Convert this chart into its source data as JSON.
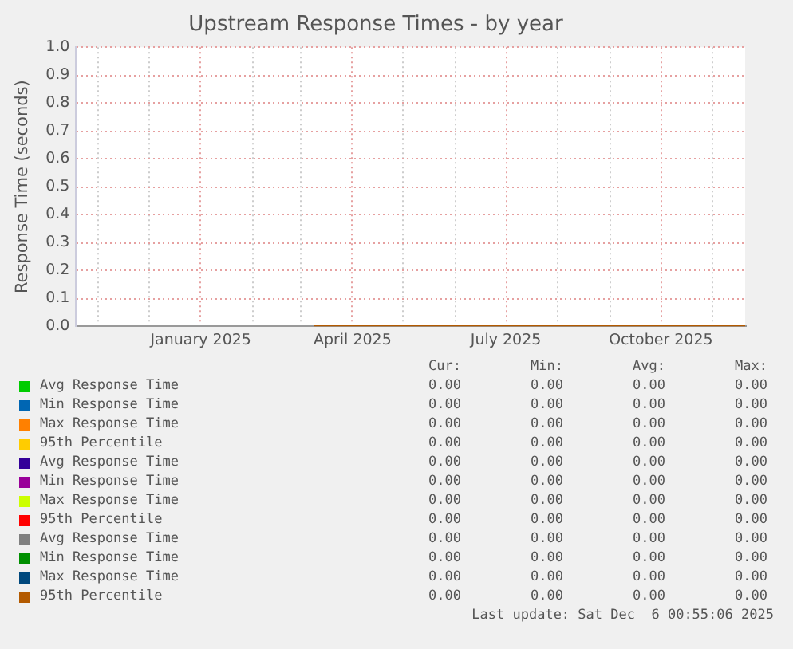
{
  "chart_data": {
    "type": "line",
    "title": "Upstream Response Times - by year",
    "ylabel": "Response Time (seconds)",
    "xlim": [
      "2024-10-19",
      "2025-11-20"
    ],
    "ylim": [
      0,
      1
    ],
    "yticks": [
      {
        "value": 0,
        "label": "0.0"
      },
      0.1,
      0.2,
      0.3,
      0.4,
      0.5,
      0.6,
      0.7,
      0.8,
      0.9,
      {
        "value": 1,
        "label": "1.0"
      }
    ],
    "xticks": [
      {
        "value": "2024-11-01",
        "label": null
      },
      {
        "value": "2024-12-01",
        "label": null
      },
      {
        "value": "2025-01-01",
        "label": "January 2025"
      },
      {
        "value": "2025-02-01",
        "label": null
      },
      {
        "value": "2025-03-01",
        "label": null
      },
      {
        "value": "2025-04-01",
        "label": "April 2025"
      },
      {
        "value": "2025-05-01",
        "label": null
      },
      {
        "value": "2025-06-01",
        "label": null
      },
      {
        "value": "2025-07-01",
        "label": "July 2025"
      },
      {
        "value": "2025-08-01",
        "label": null
      },
      {
        "value": "2025-09-01",
        "label": null
      },
      {
        "value": "2025-10-01",
        "label": "October 2025"
      },
      {
        "value": "2025-11-01",
        "label": null
      }
    ],
    "grid": true,
    "legend": "bottom",
    "marker": "none",
    "line_style": "solid",
    "series": [
      {
        "name": "Avg Response Time",
        "color": "#00cc00",
        "values": [
          null,
          null
        ]
      },
      {
        "name": "Min Response Time",
        "color": "#0066b3",
        "values": [
          null,
          null
        ]
      },
      {
        "name": "Max Response Time",
        "color": "#ff8000",
        "values": [
          null,
          null
        ]
      },
      {
        "name": "95th Percentile",
        "color": "#ffcc00",
        "values": [
          null,
          null
        ]
      },
      {
        "name": "Avg Response Time",
        "color": "#330099",
        "values": [
          null,
          null
        ]
      },
      {
        "name": "Min Response Time",
        "color": "#990099",
        "values": [
          null,
          null
        ]
      },
      {
        "name": "Max Response Time",
        "color": "#ccff00",
        "values": [
          null,
          null
        ]
      },
      {
        "name": "95th Percentile",
        "color": "#ff0000",
        "values": [
          null,
          null
        ]
      },
      {
        "name": "Avg Response Time",
        "color": "#808080",
        "values": [
          null,
          null
        ]
      },
      {
        "name": "Min Response Time",
        "color": "#008f00",
        "values": [
          null,
          null
        ]
      },
      {
        "name": "Max Response Time",
        "color": "#00487d",
        "values": [
          null,
          null
        ]
      },
      {
        "name": "95th Percentile",
        "color": "#b35a00",
        "x": [
          "2025-03-09",
          "2025-11-20"
        ],
        "values": [
          0,
          0
        ]
      }
    ],
    "annotations": [
      "Cur:",
      "Min:",
      "Avg:",
      "Max:",
      "0.00",
      "0.00",
      "0.00",
      "0.00",
      "0.00",
      "0.00",
      "0.00",
      "0.00",
      "0.00",
      "0.00",
      "0.00",
      "0.00",
      "0.00",
      "0.00",
      "0.00",
      "0.00",
      "0.00",
      "0.00",
      "0.00",
      "0.00",
      "0.00",
      "0.00",
      "0.00",
      "0.00",
      "0.00",
      "0.00",
      "0.00",
      "0.00",
      "0.00",
      "0.00",
      "0.00",
      "0.00",
      "0.00",
      "0.00",
      "0.00",
      "0.00",
      "0.00",
      "0.00",
      "0.00",
      "0.00",
      "0.00",
      "0.00",
      "0.00",
      "0.00",
      "0.00",
      "0.00",
      "0.00",
      "0.00",
      "Last update: Sat Dec  6 00:55:06 2025"
    ]
  }
}
